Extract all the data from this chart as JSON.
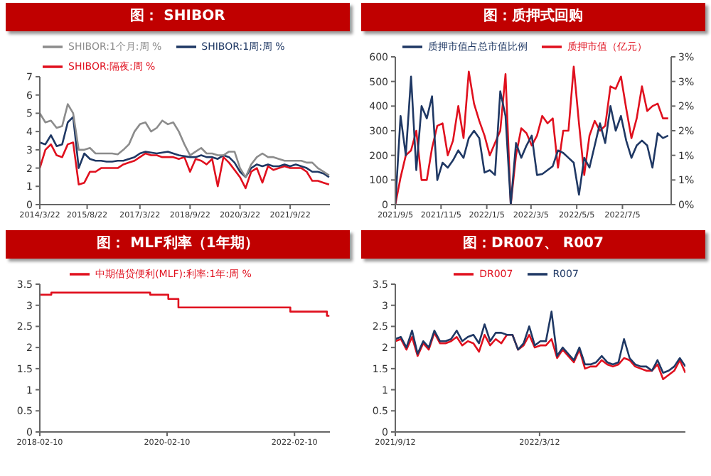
{
  "chart_data": [
    {
      "type": "line",
      "title": "图：  SHIBOR",
      "legend": "top left",
      "x": [
        "2014-03-22",
        "2014-05-22",
        "2014-07-22",
        "2014-09-22",
        "2014-11-22",
        "2015-01-22",
        "2015-03-22",
        "2015-05-22",
        "2015-07-22",
        "2015-09-22",
        "2015-11-22",
        "2016-01-22",
        "2016-03-22",
        "2016-05-22",
        "2016-07-22",
        "2016-09-22",
        "2016-11-22",
        "2017-01-22",
        "2017-03-22",
        "2017-05-22",
        "2017-07-22",
        "2017-09-22",
        "2017-11-22",
        "2018-01-22",
        "2018-03-22",
        "2018-05-22",
        "2018-07-22",
        "2018-09-22",
        "2018-11-22",
        "2019-01-22",
        "2019-03-22",
        "2019-05-22",
        "2019-07-22",
        "2019-09-22",
        "2019-11-22",
        "2020-01-22",
        "2020-03-22",
        "2020-05-22",
        "2020-07-22",
        "2020-09-22",
        "2020-11-22",
        "2021-01-22",
        "2021-03-22",
        "2021-05-22",
        "2021-07-22",
        "2021-09-22",
        "2021-11-22",
        "2022-01-22",
        "2022-03-22",
        "2022-05-22",
        "2022-07-22",
        "2022-09-22",
        "2022-11-22"
      ],
      "series": [
        {
          "name": "SHIBOR:隔夜:周 %",
          "color": "#e0101e",
          "values": [
            2.0,
            3.0,
            3.3,
            2.7,
            2.6,
            3.3,
            3.4,
            1.1,
            1.2,
            1.8,
            1.8,
            2.0,
            2.0,
            2.0,
            2.0,
            2.2,
            2.3,
            2.4,
            2.6,
            2.8,
            2.7,
            2.7,
            2.6,
            2.6,
            2.6,
            2.5,
            2.6,
            1.8,
            2.5,
            2.4,
            2.2,
            2.5,
            1.0,
            2.6,
            2.3,
            1.9,
            1.5,
            0.9,
            1.8,
            2.0,
            1.2,
            2.1,
            1.9,
            2.0,
            2.1,
            2.0,
            2.0,
            2.0,
            1.8,
            1.3,
            1.3,
            1.2,
            1.1
          ]
        },
        {
          "name": "SHIBOR:1周:周 %",
          "color": "#1f3864",
          "values": [
            3.4,
            3.3,
            3.8,
            3.2,
            3.3,
            4.5,
            4.8,
            2.0,
            2.8,
            2.5,
            2.4,
            2.4,
            2.35,
            2.35,
            2.4,
            2.4,
            2.5,
            2.6,
            2.8,
            2.9,
            2.85,
            2.8,
            2.85,
            2.9,
            2.8,
            2.7,
            2.65,
            2.6,
            2.6,
            2.7,
            2.6,
            2.6,
            2.5,
            2.7,
            2.6,
            2.3,
            1.8,
            1.5,
            2.0,
            2.2,
            2.1,
            2.2,
            2.1,
            2.1,
            2.2,
            2.1,
            2.2,
            2.1,
            2.0,
            1.8,
            1.8,
            1.7,
            1.5
          ]
        },
        {
          "name": "SHIBOR:1个月:周 %",
          "color": "#8c8c8c",
          "values": [
            5.0,
            4.5,
            4.6,
            4.2,
            4.3,
            5.5,
            5.0,
            3.0,
            3.0,
            3.1,
            2.8,
            2.8,
            2.8,
            2.8,
            2.75,
            3.0,
            3.3,
            4.0,
            4.4,
            4.5,
            4.0,
            4.2,
            4.6,
            4.4,
            4.5,
            4.0,
            3.3,
            2.7,
            2.9,
            3.1,
            2.8,
            2.8,
            2.7,
            2.7,
            2.9,
            2.9,
            2.0,
            1.5,
            2.2,
            2.6,
            2.8,
            2.6,
            2.6,
            2.5,
            2.4,
            2.4,
            2.4,
            2.4,
            2.3,
            2.3,
            2.0,
            1.8,
            1.6
          ]
        }
      ],
      "xlim": [
        "2014-03-22",
        "2022-12-01"
      ],
      "xticks": [
        {
          "value": "2014-03-22",
          "label": "2014/3/22"
        },
        {
          "value": "2015-08-22",
          "label": "2015/8/22"
        },
        {
          "value": "2017-03-22",
          "label": "2017/3/22"
        },
        {
          "value": "2018-09-22",
          "label": "2018/9/22"
        },
        {
          "value": "2020-03-22",
          "label": "2020/3/22"
        },
        {
          "value": "2021-09-22",
          "label": "2021/9/22"
        }
      ],
      "ylim": [
        0,
        7
      ],
      "yticks": [
        0,
        1,
        2,
        3,
        4,
        5,
        6,
        7
      ]
    },
    {
      "type": "line",
      "title": "图：质押式回购",
      "legend": "top",
      "x": [
        "2021-09-05",
        "2021-09-12",
        "2021-09-19",
        "2021-09-26",
        "2021-10-03",
        "2021-10-10",
        "2021-10-17",
        "2021-10-24",
        "2021-10-31",
        "2021-11-07",
        "2021-11-14",
        "2021-11-21",
        "2021-11-28",
        "2021-12-05",
        "2021-12-12",
        "2021-12-19",
        "2021-12-26",
        "2022-01-02",
        "2022-01-09",
        "2022-01-16",
        "2022-01-23",
        "2022-01-30",
        "2022-02-06",
        "2022-02-13",
        "2022-02-20",
        "2022-02-27",
        "2022-03-06",
        "2022-03-13",
        "2022-03-20",
        "2022-03-27",
        "2022-04-03",
        "2022-04-10",
        "2022-04-17",
        "2022-04-24",
        "2022-05-01",
        "2022-05-08",
        "2022-05-15",
        "2022-05-22",
        "2022-05-29",
        "2022-06-05",
        "2022-06-12",
        "2022-06-19",
        "2022-06-26",
        "2022-07-03",
        "2022-07-10",
        "2022-07-17",
        "2022-07-24",
        "2022-07-31",
        "2022-08-07",
        "2022-08-14",
        "2022-08-21",
        "2022-08-28",
        "2022-09-04"
      ],
      "series": [
        {
          "name": "质押市值（亿元）",
          "color": "#e0101e",
          "values": [
            0,
            110,
            200,
            220,
            300,
            100,
            100,
            230,
            320,
            330,
            200,
            260,
            400,
            270,
            540,
            410,
            340,
            280,
            200,
            250,
            300,
            530,
            0,
            200,
            310,
            290,
            240,
            280,
            360,
            330,
            350,
            150,
            300,
            300,
            560,
            330,
            120,
            280,
            340,
            300,
            320,
            480,
            470,
            520,
            390,
            270,
            350,
            480,
            380,
            400,
            410,
            350,
            350
          ]
        },
        {
          "name": "质押市值占总市值比例",
          "color": "#1f3864",
          "axis": "y2",
          "values": [
            0,
            1.8,
            1.0,
            2.6,
            0.7,
            2.0,
            1.75,
            2.2,
            0.5,
            0.85,
            0.75,
            0.9,
            1.1,
            0.95,
            1.35,
            1.5,
            1.35,
            0.65,
            0.7,
            0.6,
            2.3,
            1.8,
            0,
            1.25,
            0.95,
            1.2,
            1.4,
            0.6,
            0.62,
            0.7,
            0.78,
            1.1,
            1.05,
            0.95,
            0.85,
            0.2,
            0.95,
            0.75,
            1.2,
            1.65,
            1.25,
            2.0,
            1.5,
            1.8,
            1.3,
            0.95,
            1.2,
            1.3,
            1.2,
            0.75,
            1.45,
            1.35,
            1.4
          ]
        }
      ],
      "xlim": [
        "2021-09-05",
        "2022-09-08"
      ],
      "xticks": [
        {
          "value": "2021-09-05",
          "label": "2021/9/5"
        },
        {
          "value": "2021-11-05",
          "label": "2021/11/5"
        },
        {
          "value": "2022-01-05",
          "label": "2022/1/5"
        },
        {
          "value": "2022-03-05",
          "label": "2022/3/5"
        },
        {
          "value": "2022-05-05",
          "label": "2022/5/5"
        },
        {
          "value": "2022-07-05",
          "label": "2022/7/5"
        }
      ],
      "ylim": [
        0,
        600
      ],
      "yticks": [
        0,
        100,
        200,
        300,
        400,
        500,
        600
      ],
      "y2lim": [
        0,
        3
      ],
      "y2ticks": [
        {
          "value": 0,
          "label": "0%"
        },
        {
          "value": 0.5,
          "label": "1%"
        },
        {
          "value": 1,
          "label": "1%"
        },
        {
          "value": 1.5,
          "label": "2%"
        },
        {
          "value": 2,
          "label": "2%"
        },
        {
          "value": 2.5,
          "label": "3%"
        },
        {
          "value": 3,
          "label": "3%"
        }
      ]
    },
    {
      "type": "step",
      "title": "图：  MLF利率（1年期）",
      "legend": "top",
      "x": [
        "2018-02-10",
        "2018-04-17",
        "2019-11-05",
        "2020-02-17",
        "2020-04-15",
        "2022-01-17",
        "2022-08-15",
        "2022-08-29"
      ],
      "series": [
        {
          "name": "中期借贷便利(MLF):利率:1年:周 %",
          "color": "#e0101e",
          "values": [
            3.25,
            3.3,
            3.25,
            3.15,
            2.95,
            2.85,
            2.75,
            2.75
          ]
        }
      ],
      "xlim": [
        "2018-02-10",
        "2022-09-01"
      ],
      "xticks": [
        {
          "value": "2018-02-10",
          "label": "2018-02-10"
        },
        {
          "value": "2020-02-10",
          "label": "2020-02-10"
        },
        {
          "value": "2022-02-10",
          "label": "2022-02-10"
        }
      ],
      "ylim": [
        0,
        3.5
      ],
      "yticks": [
        0,
        0.5,
        1,
        1.5,
        2,
        2.5,
        3,
        3.5
      ]
    },
    {
      "type": "line",
      "title": "图：DR007、 R007",
      "legend": "top",
      "x": [
        "2021-09-12",
        "2021-09-19",
        "2021-09-26",
        "2021-10-03",
        "2021-10-10",
        "2021-10-17",
        "2021-10-24",
        "2021-10-31",
        "2021-11-07",
        "2021-11-14",
        "2021-11-21",
        "2021-11-28",
        "2021-12-05",
        "2021-12-12",
        "2021-12-19",
        "2021-12-26",
        "2022-01-02",
        "2022-01-09",
        "2022-01-16",
        "2022-01-23",
        "2022-01-30",
        "2022-02-06",
        "2022-02-13",
        "2022-02-20",
        "2022-02-27",
        "2022-03-06",
        "2022-03-13",
        "2022-03-20",
        "2022-03-27",
        "2022-04-03",
        "2022-04-10",
        "2022-04-17",
        "2022-04-24",
        "2022-05-01",
        "2022-05-08",
        "2022-05-15",
        "2022-05-22",
        "2022-05-29",
        "2022-06-05",
        "2022-06-12",
        "2022-06-19",
        "2022-06-26",
        "2022-07-03",
        "2022-07-10",
        "2022-07-17",
        "2022-07-24",
        "2022-07-31",
        "2022-08-07",
        "2022-08-14",
        "2022-08-21",
        "2022-08-28",
        "2022-09-04",
        "2022-09-11"
      ],
      "series": [
        {
          "name": "DR007",
          "color": "#e0101e",
          "values": [
            2.15,
            2.2,
            1.95,
            2.25,
            1.8,
            2.1,
            1.95,
            2.35,
            2.1,
            2.1,
            2.15,
            2.25,
            2.05,
            2.15,
            2.1,
            1.9,
            2.3,
            2.05,
            2.2,
            2.1,
            2.3,
            2.3,
            1.95,
            2.05,
            2.3,
            2.0,
            2.05,
            2.05,
            2.2,
            1.75,
            1.95,
            1.8,
            1.65,
            1.95,
            1.5,
            1.55,
            1.55,
            1.7,
            1.6,
            1.55,
            1.6,
            1.75,
            1.7,
            1.55,
            1.5,
            1.45,
            1.45,
            1.6,
            1.25,
            1.35,
            1.45,
            1.7,
            1.4
          ]
        },
        {
          "name": "R007",
          "color": "#1f3864",
          "values": [
            2.2,
            2.25,
            2.0,
            2.4,
            1.85,
            2.15,
            2.0,
            2.4,
            2.15,
            2.15,
            2.2,
            2.4,
            2.15,
            2.25,
            2.3,
            2.1,
            2.55,
            2.15,
            2.35,
            2.35,
            2.3,
            2.3,
            1.95,
            2.1,
            2.5,
            2.05,
            2.15,
            2.15,
            2.85,
            1.8,
            2.0,
            1.85,
            1.7,
            2.0,
            1.6,
            1.6,
            1.65,
            1.8,
            1.65,
            1.6,
            1.65,
            2.2,
            1.75,
            1.6,
            1.55,
            1.55,
            1.45,
            1.7,
            1.4,
            1.45,
            1.55,
            1.75,
            1.55
          ]
        }
      ],
      "xlim": [
        "2021-09-12",
        "2022-09-11"
      ],
      "xticks": [
        {
          "value": "2021-09-12",
          "label": "2021/9/12"
        },
        {
          "value": "2022-03-12",
          "label": "2022/3/12"
        }
      ],
      "ylim": [
        0,
        3.5
      ],
      "yticks": [
        0,
        0.5,
        1,
        1.5,
        2,
        2.5,
        3,
        3.5
      ]
    }
  ]
}
